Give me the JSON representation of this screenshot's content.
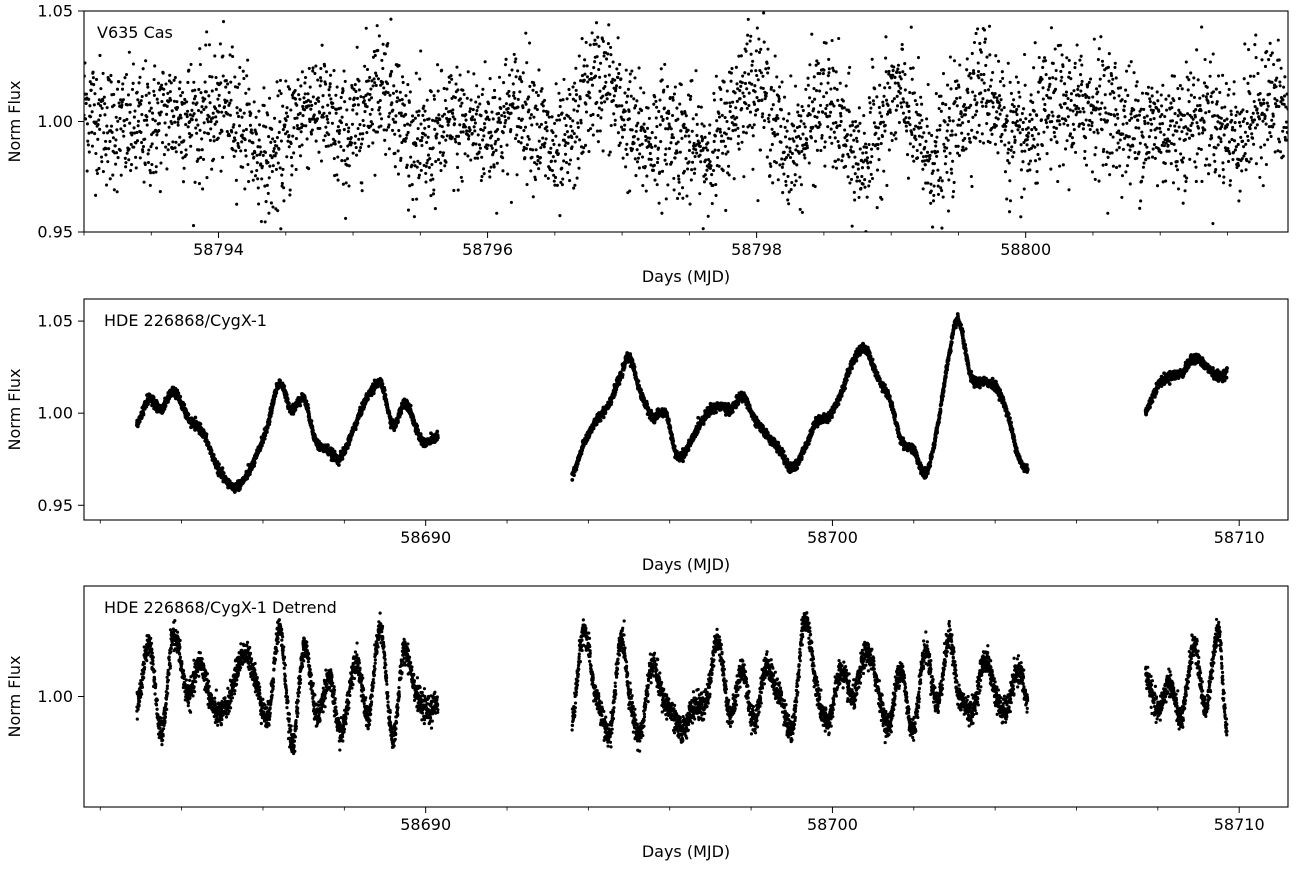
{
  "chart_data": [
    {
      "type": "scatter",
      "title": "",
      "annotation": "V635 Cas",
      "xlabel": "Days (MJD)",
      "ylabel": "Norm Flux",
      "xlim": [
        58793.0,
        58801.95
      ],
      "ylim": [
        0.95,
        1.05
      ],
      "x_ticks": [
        58794,
        58796,
        58798,
        58800
      ],
      "x_tick_labels": [
        "58794",
        "58796",
        "58798",
        "58800"
      ],
      "y_ticks": [
        0.95,
        1.0,
        1.05
      ],
      "y_tick_labels": [
        "0.95",
        "1.00",
        "1.05"
      ],
      "grid": false,
      "marker_color": "#000000",
      "series": [
        {
          "x": [
            58793.0,
            58793.25,
            58793.5,
            58793.75,
            58794.0,
            58794.25,
            58794.5,
            58794.75,
            58795.0,
            58795.25,
            58795.5,
            58795.75,
            58796.0,
            58796.25,
            58796.5,
            58796.75,
            58797.0,
            58797.25,
            58797.5,
            58797.75,
            58798.0,
            58798.25,
            58798.5,
            58798.75,
            58799.0,
            58799.25,
            58799.5,
            58799.75,
            58800.0,
            58800.25,
            58800.5,
            58800.75,
            58801.0,
            58801.25,
            58801.5,
            58801.75,
            58801.95
          ],
          "y": [
            1.0,
            1.005,
            0.99,
            1.01,
            1.0,
            0.995,
            0.99,
            1.005,
            1.0,
            1.01,
            0.995,
            0.99,
            1.005,
            1.0,
            0.99,
            1.01,
            1.005,
            0.995,
            0.985,
            1.0,
            1.01,
            0.995,
            1.0,
            0.99,
            1.005,
            0.99,
            1.0,
            1.01,
            0.995,
            1.0,
            1.015,
            0.99,
            1.005,
            0.995,
            1.0,
            1.005,
            0.995
          ]
        }
      ]
    },
    {
      "type": "scatter",
      "title": "",
      "annotation": "HDE 226868/CygX-1",
      "xlabel": "Days (MJD)",
      "ylabel": "Norm Flux",
      "xlim": [
        58681.6,
        58711.2
      ],
      "ylim": [
        0.942,
        1.062
      ],
      "x_ticks": [
        58690,
        58700,
        58710
      ],
      "x_tick_labels": [
        "58690",
        "58700",
        "58710"
      ],
      "y_ticks": [
        0.95,
        1.0,
        1.05
      ],
      "y_tick_labels": [
        "0.95",
        "1.00",
        "1.05"
      ],
      "grid": false,
      "marker_color": "#000000",
      "series": [
        {
          "x": [
            58682.9,
            58683.2,
            58683.5,
            58683.8,
            58684.2,
            58684.5,
            58684.9,
            58685.3,
            58685.7,
            58686.1,
            58686.4,
            58686.7,
            58687.0,
            58687.3,
            58687.6,
            58687.9,
            58688.3,
            58688.6,
            58688.9,
            58689.2,
            58689.5,
            58689.9,
            58690.3,
            58693.6,
            58693.9,
            58694.2,
            58694.5,
            58694.8,
            58695.0,
            58695.3,
            58695.6,
            58695.9,
            58696.2,
            58696.9,
            58697.2,
            58697.5,
            58697.8,
            58698.1,
            58698.4,
            58698.7,
            58699.0,
            58699.3,
            58699.6,
            58699.9,
            58700.2,
            58700.5,
            58700.8,
            58701.1,
            58701.4,
            58701.7,
            58702.0,
            58702.3,
            58702.6,
            58702.9,
            58703.1,
            58703.4,
            58703.7,
            58704.0,
            58704.3,
            58704.6,
            58704.8,
            58707.7,
            58708.0,
            58708.3,
            58708.6,
            58708.9,
            58709.2,
            58709.5,
            58709.7
          ],
          "y": [
            0.994,
            1.008,
            1.002,
            1.012,
            0.996,
            0.99,
            0.97,
            0.96,
            0.97,
            0.992,
            1.016,
            1.002,
            1.008,
            0.985,
            0.98,
            0.976,
            0.995,
            1.01,
            1.016,
            0.993,
            1.006,
            0.985,
            0.987,
            0.966,
            0.984,
            0.996,
            1.005,
            1.02,
            1.03,
            1.01,
            0.998,
            1.0,
            0.976,
            0.999,
            1.004,
            1.002,
            1.009,
            0.996,
            0.988,
            0.98,
            0.97,
            0.98,
            0.995,
            0.998,
            1.01,
            1.028,
            1.035,
            1.02,
            1.008,
            0.985,
            0.98,
            0.967,
            0.995,
            1.035,
            1.05,
            1.02,
            1.017,
            1.015,
            1.0,
            0.975,
            0.97,
            1.001,
            1.015,
            1.02,
            1.022,
            1.03,
            1.025,
            1.02,
            1.022
          ]
        }
      ]
    },
    {
      "type": "scatter",
      "title": "",
      "annotation": "HDE 226868/CygX-1 Detrend",
      "xlabel": "Days (MJD)",
      "ylabel": "Norm Flux",
      "xlim": [
        58681.6,
        58711.2
      ],
      "ylim": [
        0.93,
        1.07
      ],
      "x_ticks": [
        58690,
        58700,
        58710
      ],
      "x_tick_labels": [
        "58690",
        "58700",
        "58710"
      ],
      "y_ticks": [
        1.0
      ],
      "y_tick_labels": [
        "1.00"
      ],
      "grid": false,
      "marker_color": "#000000",
      "series": [
        {
          "x": [
            58682.9,
            58683.2,
            58683.5,
            58683.8,
            58684.2,
            58684.5,
            58684.9,
            58685.3,
            58685.7,
            58686.1,
            58686.4,
            58686.7,
            58687.0,
            58687.3,
            58687.6,
            58687.9,
            58688.3,
            58688.6,
            58688.9,
            58689.2,
            58689.5,
            58689.9,
            58690.3,
            58693.6,
            58693.9,
            58694.2,
            58694.5,
            58694.8,
            58695.0,
            58695.3,
            58695.6,
            58695.9,
            58696.2,
            58696.9,
            58697.2,
            58697.5,
            58697.8,
            58698.1,
            58698.4,
            58698.7,
            58699.0,
            58699.3,
            58699.6,
            58699.9,
            58700.2,
            58700.5,
            58700.8,
            58701.1,
            58701.4,
            58701.7,
            58702.0,
            58702.3,
            58702.6,
            58702.9,
            58703.1,
            58703.4,
            58703.7,
            58704.0,
            58704.3,
            58704.6,
            58704.8,
            58707.7,
            58708.0,
            58708.3,
            58708.6,
            58708.9,
            58709.2,
            58709.5,
            58709.7
          ],
          "y": [
            0.998,
            1.03,
            0.98,
            1.035,
            1.002,
            1.02,
            0.985,
            1.012,
            1.025,
            0.983,
            1.045,
            0.97,
            1.03,
            0.99,
            1.01,
            0.98,
            1.02,
            0.99,
            1.04,
            0.975,
            1.03,
            0.99,
            1.0,
            0.985,
            1.04,
            1.0,
            0.975,
            1.035,
            1.0,
            0.98,
            1.02,
            0.995,
            0.982,
            1.0,
            1.032,
            0.99,
            1.015,
            0.985,
            1.02,
            1.0,
            0.98,
            1.045,
            1.01,
            0.98,
            1.02,
            0.995,
            1.03,
            1.005,
            0.985,
            1.015,
            0.98,
            1.03,
            0.995,
            1.04,
            1.0,
            0.99,
            1.02,
            1.005,
            0.99,
            1.02,
            0.995,
            1.01,
            0.995,
            1.005,
            0.99,
            1.03,
            0.995,
            1.04,
            0.98
          ]
        }
      ]
    }
  ]
}
